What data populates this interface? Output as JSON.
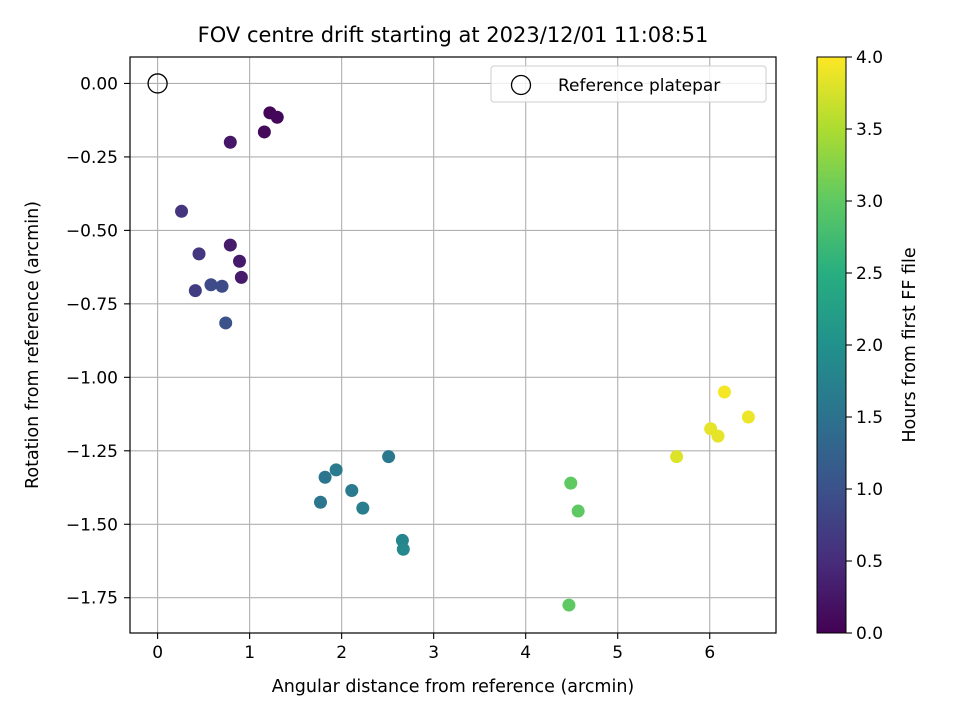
{
  "chart_data": {
    "type": "scatter",
    "title": "FOV centre drift starting at 2023/12/01 11:08:51",
    "xlabel": "Angular distance from reference (arcmin)",
    "ylabel": "Rotation from reference (arcmin)",
    "xlim": [
      -0.3,
      6.72
    ],
    "ylim": [
      -1.87,
      0.09
    ],
    "xticks": [
      0,
      1,
      2,
      3,
      4,
      5,
      6
    ],
    "xtick_labels": [
      "0",
      "1",
      "2",
      "3",
      "4",
      "5",
      "6"
    ],
    "yticks": [
      0.0,
      -0.25,
      -0.5,
      -0.75,
      -1.0,
      -1.25,
      -1.5,
      -1.75
    ],
    "ytick_labels": [
      "0.00",
      "−0.25",
      "−0.50",
      "−0.75",
      "−1.00",
      "−1.25",
      "−1.50",
      "−1.75"
    ],
    "grid": true,
    "legend": {
      "placement": "top-right",
      "entries": [
        "Reference platepar"
      ]
    },
    "reference_point": {
      "x": 0.0,
      "y": 0.0,
      "marker": "open-circle"
    },
    "colormap": "viridis",
    "colorbar": {
      "label": "Hours from first FF file",
      "range": [
        0.0,
        4.0
      ],
      "ticks": [
        0.0,
        0.5,
        1.0,
        1.5,
        2.0,
        2.5,
        3.0,
        3.5,
        4.0
      ],
      "tick_labels": [
        "0.0",
        "0.5",
        "1.0",
        "1.5",
        "2.0",
        "2.5",
        "3.0",
        "3.5",
        "4.0"
      ]
    },
    "points": [
      {
        "x": 1.22,
        "y": -0.1,
        "hours": 0.05
      },
      {
        "x": 1.3,
        "y": -0.115,
        "hours": 0.08
      },
      {
        "x": 1.16,
        "y": -0.165,
        "hours": 0.1
      },
      {
        "x": 0.79,
        "y": -0.2,
        "hours": 0.25
      },
      {
        "x": 0.79,
        "y": -0.55,
        "hours": 0.3
      },
      {
        "x": 0.89,
        "y": -0.605,
        "hours": 0.28
      },
      {
        "x": 0.91,
        "y": -0.66,
        "hours": 0.3
      },
      {
        "x": 0.26,
        "y": -0.435,
        "hours": 0.6
      },
      {
        "x": 0.45,
        "y": -0.58,
        "hours": 0.62
      },
      {
        "x": 0.41,
        "y": -0.705,
        "hours": 0.7
      },
      {
        "x": 0.58,
        "y": -0.685,
        "hours": 0.9
      },
      {
        "x": 0.7,
        "y": -0.69,
        "hours": 0.92
      },
      {
        "x": 0.74,
        "y": -0.815,
        "hours": 1.0
      },
      {
        "x": 2.51,
        "y": -1.27,
        "hours": 1.6
      },
      {
        "x": 1.94,
        "y": -1.315,
        "hours": 1.65
      },
      {
        "x": 1.82,
        "y": -1.34,
        "hours": 1.55
      },
      {
        "x": 2.11,
        "y": -1.385,
        "hours": 1.65
      },
      {
        "x": 1.77,
        "y": -1.425,
        "hours": 1.55
      },
      {
        "x": 2.23,
        "y": -1.445,
        "hours": 1.7
      },
      {
        "x": 2.66,
        "y": -1.555,
        "hours": 1.8
      },
      {
        "x": 2.67,
        "y": -1.585,
        "hours": 1.85
      },
      {
        "x": 4.49,
        "y": -1.36,
        "hours": 3.0
      },
      {
        "x": 4.57,
        "y": -1.455,
        "hours": 3.0
      },
      {
        "x": 4.47,
        "y": -1.775,
        "hours": 3.0
      },
      {
        "x": 6.16,
        "y": -1.05,
        "hours": 3.95
      },
      {
        "x": 6.42,
        "y": -1.135,
        "hours": 3.9
      },
      {
        "x": 6.01,
        "y": -1.175,
        "hours": 3.85
      },
      {
        "x": 6.09,
        "y": -1.2,
        "hours": 3.85
      },
      {
        "x": 5.64,
        "y": -1.27,
        "hours": 3.8
      }
    ]
  }
}
